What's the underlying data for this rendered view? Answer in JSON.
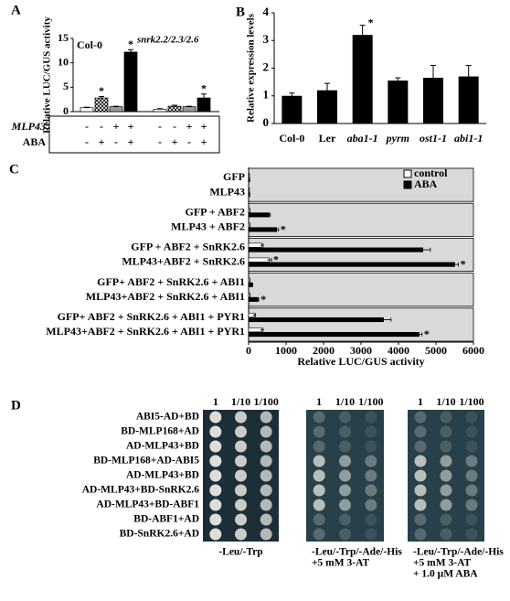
{
  "chart_data": [
    {
      "type": "bar",
      "title": "A",
      "ylabel": "Relative LUC/GUS activity",
      "group_labels": [
        "Col-0",
        "snrk2.2/2.3/2.6"
      ],
      "values": [
        0.8,
        2.8,
        1.0,
        12.2,
        0.5,
        1.1,
        1.0,
        2.8
      ],
      "errors": [
        0.1,
        0.3,
        0.1,
        0.5,
        0.1,
        0.2,
        0.1,
        0.8
      ],
      "fills": [
        "#ffffff",
        "hatch",
        "#999999",
        "#000000",
        "#ffffff",
        "hatch",
        "#999999",
        "#000000"
      ],
      "stars": [
        null,
        "*",
        null,
        "*",
        null,
        null,
        null,
        "*"
      ],
      "conditions": [
        {
          "name": "MLP43",
          "values": [
            "-",
            "-",
            "+",
            "+",
            "-",
            "-",
            "+",
            "+"
          ]
        },
        {
          "name": "ABA",
          "values": [
            "-",
            "+",
            "-",
            "+",
            "-",
            "+",
            "-",
            "+"
          ]
        }
      ],
      "ylim": [
        0,
        15
      ],
      "yticks": [
        0,
        5,
        10,
        15
      ]
    },
    {
      "type": "bar",
      "title": "B",
      "ylabel": "Relative expression levels",
      "categories": [
        "Col-0",
        "Ler",
        "aba1-1",
        "pyrm",
        "ost1-1",
        "abi1-1"
      ],
      "values": [
        1.0,
        1.2,
        3.2,
        1.55,
        1.65,
        1.7
      ],
      "errors": [
        0.1,
        0.25,
        0.35,
        0.1,
        0.45,
        0.4
      ],
      "stars": [
        null,
        null,
        "*",
        null,
        null,
        null
      ],
      "color": "#000000",
      "ylim": [
        0,
        4
      ],
      "yticks": [
        0,
        1,
        2,
        3,
        4
      ]
    },
    {
      "type": "hbar",
      "title": "C",
      "xlabel": "Relative LUC/GUS activity",
      "categories": [
        "GFP",
        "MLP43",
        "GFP + ABF2",
        "MLP43 + ABF2",
        "GFP + ABF2 + SnRK2.6",
        "MLP43+ABF2 + SnRK2.6",
        "GFP+ ABF2 + SnRK2.6 + ABI1",
        "MLP43+ABF2 + SnRK2.6 + ABI1",
        "GFP+ ABF2 + SnRK2.6 + ABI1 + PYR1",
        "MLP43+ABF2 + SnRK2.6 + ABI1 + PYR1"
      ],
      "series": [
        {
          "name": "control",
          "color": "#ffffff",
          "values": [
            20,
            20,
            30,
            30,
            350,
            550,
            30,
            30,
            150,
            350
          ],
          "errors": [
            0,
            0,
            5,
            5,
            40,
            60,
            5,
            5,
            30,
            40
          ],
          "stars": [
            null,
            null,
            null,
            null,
            null,
            "*",
            null,
            null,
            null,
            null
          ]
        },
        {
          "name": "ABA",
          "color": "#000000",
          "values": [
            30,
            30,
            550,
            750,
            4650,
            5500,
            100,
            250,
            3600,
            4550
          ],
          "errors": [
            0,
            0,
            30,
            50,
            200,
            100,
            10,
            20,
            200,
            80
          ],
          "stars": [
            null,
            null,
            null,
            "*",
            null,
            "*",
            null,
            "*",
            null,
            "*"
          ]
        }
      ],
      "xlim": [
        0,
        6000
      ],
      "xticks": [
        0,
        1000,
        2000,
        3000,
        4000,
        5000,
        6000
      ]
    }
  ],
  "panel_d": {
    "title": "D",
    "rows": [
      "ABI5-AD+BD",
      "BD-MLP168+AD",
      "AD-MLP43+BD",
      "BD-MLP168+AD-ABI5",
      "AD-MLP43+BD",
      "AD-MLP43+BD-SnRK2.6",
      "AD-MLP43+BD-ABF1",
      "BD-ABF1+AD",
      "BD-SnRK2.6+AD"
    ],
    "dilutions": [
      "1",
      "1/10",
      "1/100"
    ],
    "plates": [
      [
        "-Leu/-Trp"
      ],
      [
        "-Leu/-Trp/-Ade/-His",
        "+5 mM 3-AT"
      ],
      [
        "-Leu/-Trp/-Ade/-His",
        "+5 mM 3-AT",
        "+ 1.0 μM ABA"
      ]
    ]
  }
}
